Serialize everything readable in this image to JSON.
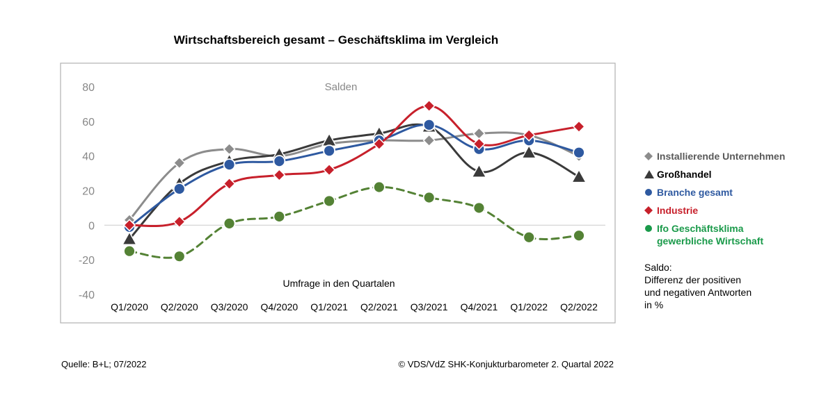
{
  "chart_data": {
    "type": "line",
    "title": "Wirtschaftsbereich gesamt – Geschäftsklima im Vergleich",
    "subtitle": "Salden",
    "xlabel": "Umfrage in den Quartalen",
    "ylabel": "",
    "ylim": [
      -40,
      80
    ],
    "yticks": [
      "80",
      "60",
      "40",
      "20",
      "0",
      "-20",
      "-40"
    ],
    "categories": [
      "Q1/2020",
      "Q2/2020",
      "Q3/2020",
      "Q4/2020",
      "Q1/2021",
      "Q2/2021",
      "Q3/2021",
      "Q4/2021",
      "Q1/2022",
      "Q2/2022"
    ],
    "legend_position": "right",
    "grid": false,
    "series": [
      {
        "name": "Installierende Unternehmen",
        "color": "#8c8c8c",
        "legend_color": "#595959",
        "marker": "diamond",
        "dashed": false,
        "values": [
          3,
          36,
          44,
          40,
          47,
          49,
          49,
          53,
          52,
          40
        ]
      },
      {
        "name": "Großhandel",
        "color": "#3a3a3a",
        "legend_color": "#000000",
        "marker": "triangle",
        "dashed": false,
        "values": [
          -8,
          24,
          37,
          41,
          49,
          53,
          57,
          31,
          42,
          28
        ]
      },
      {
        "name": "Branche gesamt",
        "color": "#2e59a0",
        "legend_color": "#2e59a0",
        "marker": "circle",
        "dashed": false,
        "values": [
          -1,
          21,
          35,
          37,
          43,
          49,
          58,
          44,
          49,
          42
        ]
      },
      {
        "name": "Industrie",
        "color": "#c7202b",
        "legend_color": "#c7202b",
        "marker": "diamond",
        "dashed": false,
        "values": [
          0,
          2,
          24,
          29,
          32,
          47,
          69,
          47,
          52,
          57
        ]
      },
      {
        "name": "Ifo Geschäftsklima\ngewerbliche Wirtschaft",
        "color": "#548235",
        "legend_color": "#1a9a4a",
        "marker": "circle",
        "dashed": true,
        "values": [
          -15,
          -18,
          1,
          5,
          14,
          22,
          16,
          10,
          -7,
          -6
        ]
      }
    ]
  },
  "note": "Saldo:\nDifferenz der positiven\nund negativen Antworten\nin %",
  "footer": {
    "source": "Quelle: B+L; 07/2022",
    "copyright": "© VDS/VdZ SHK-Konjukturbarometer 2. Quartal 2022"
  }
}
